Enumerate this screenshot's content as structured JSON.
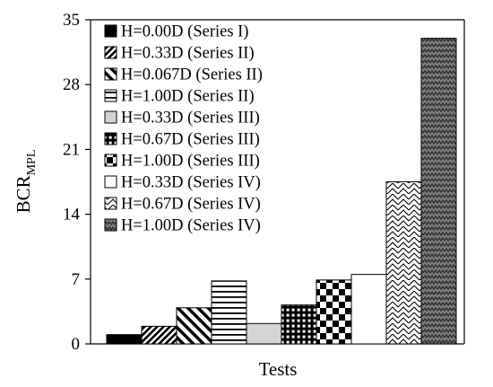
{
  "chart_data": {
    "type": "bar",
    "title": "",
    "xlabel": "Tests",
    "ylabel": {
      "main": "BCR",
      "subscript": "MPL"
    },
    "ylim": [
      0,
      35
    ],
    "yticks": [
      "0",
      "7",
      "14",
      "21",
      "28",
      "35"
    ],
    "grid": false,
    "legend_position": "top-left",
    "series": [
      {
        "name": "H=0.00D (Series I)",
        "value": 1.0,
        "pattern": "solid-black"
      },
      {
        "name": "H=0.33D (Series II)",
        "value": 1.9,
        "pattern": "diagonal-lines"
      },
      {
        "name": "H=0.067D (Series II)",
        "value": 3.9,
        "pattern": "wide-diagonal"
      },
      {
        "name": "H=1.00D (Series II)",
        "value": 6.8,
        "pattern": "horizontal-lines"
      },
      {
        "name": "H=0.33D (Series III)",
        "value": 2.2,
        "pattern": "light-gray"
      },
      {
        "name": "H=0.67D (Series III)",
        "value": 4.2,
        "pattern": "dark-grid"
      },
      {
        "name": "H=1.00D (Series III)",
        "value": 6.9,
        "pattern": "checkerboard"
      },
      {
        "name": "H=0.33D (Series IV)",
        "value": 7.5,
        "pattern": "white"
      },
      {
        "name": "H=0.67D (Series IV)",
        "value": 17.5,
        "pattern": "diagonal-weave"
      },
      {
        "name": "H=1.00D (Series IV)",
        "value": 33.0,
        "pattern": "gray-zigzag"
      }
    ]
  }
}
